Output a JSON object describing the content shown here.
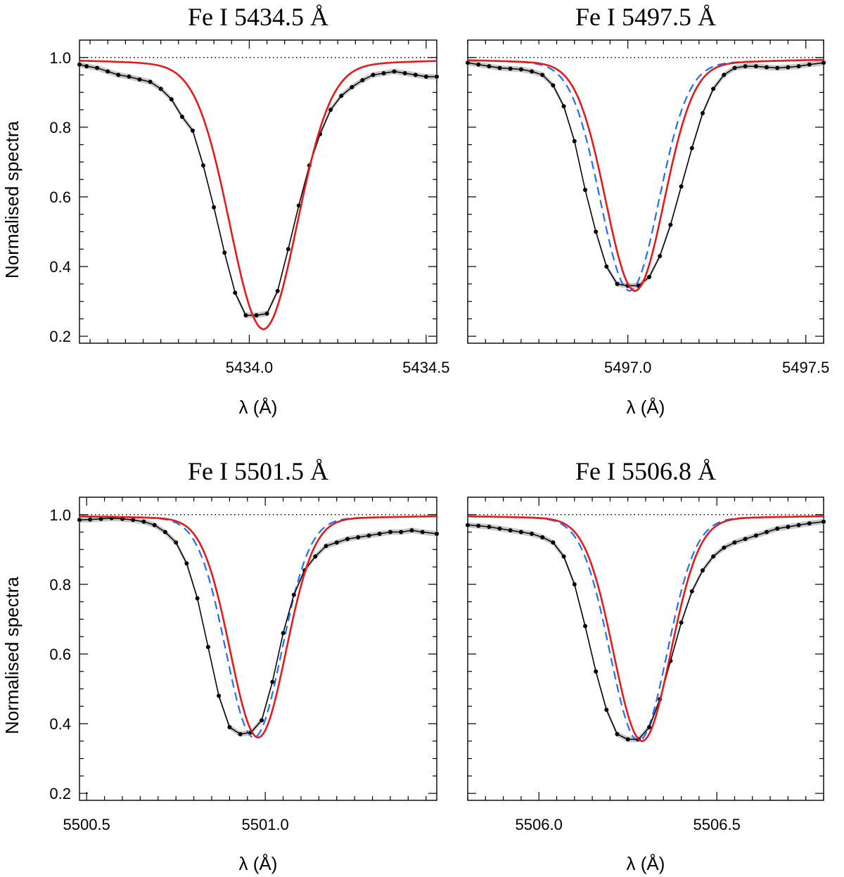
{
  "figure": {
    "ylabel": "Normalised spectra",
    "xlabel": "λ (Å)"
  },
  "chart_data": [
    {
      "type": "line",
      "title": "Fe I  5434.5 Å",
      "xlabel": "λ (Å)",
      "ylabel": "Normalised spectra",
      "xlim": [
        5433.52,
        5434.53
      ],
      "ylim": [
        0.18,
        1.05
      ],
      "xticks": [
        "5434.0",
        "5434.5"
      ],
      "yticks": [
        "0.2",
        "0.4",
        "0.6",
        "0.8",
        "1.0"
      ],
      "reference_line": 1.0,
      "min_x": 5434.04,
      "series": [
        {
          "key": "obs",
          "color": "#000000",
          "style": "solid-with-points",
          "x": [
            5433.52,
            5433.54,
            5433.57,
            5433.6,
            5433.63,
            5433.66,
            5433.69,
            5433.72,
            5433.75,
            5433.78,
            5433.81,
            5433.84,
            5433.87,
            5433.9,
            5433.93,
            5433.96,
            5433.99,
            5434.02,
            5434.05,
            5434.08,
            5434.11,
            5434.14,
            5434.17,
            5434.2,
            5434.23,
            5434.26,
            5434.29,
            5434.32,
            5434.35,
            5434.38,
            5434.41,
            5434.44,
            5434.47,
            5434.5,
            5434.53
          ],
          "y": [
            0.98,
            0.975,
            0.97,
            0.96,
            0.95,
            0.945,
            0.937,
            0.93,
            0.91,
            0.88,
            0.83,
            0.79,
            0.69,
            0.57,
            0.44,
            0.325,
            0.26,
            0.26,
            0.265,
            0.33,
            0.45,
            0.575,
            0.69,
            0.78,
            0.85,
            0.89,
            0.915,
            0.935,
            0.95,
            0.955,
            0.96,
            0.955,
            0.95,
            0.945,
            0.945
          ]
        },
        {
          "key": "model_red",
          "color": "#e41a1c",
          "style": "solid"
        },
        {
          "key": "model_blue",
          "color": "#1f6fff",
          "style": "dashed"
        }
      ],
      "model": {
        "depth": 0.74,
        "sigma": 0.095,
        "wings": 0.04,
        "red_shift": 0.0,
        "blue_shift": 0.0,
        "asym": 0.0
      }
    },
    {
      "type": "line",
      "title": "Fe I  5497.5 Å",
      "xlabel": "λ (Å)",
      "ylabel": "Normalised spectra",
      "xlim": [
        5496.55,
        5497.55
      ],
      "ylim": [
        0.18,
        1.05
      ],
      "xticks": [
        "5497.0",
        "5497.5"
      ],
      "yticks": [
        "0.2",
        "0.4",
        "0.6",
        "0.8",
        "1.0"
      ],
      "reference_line": 1.0,
      "min_x": 5497.02,
      "series": [
        {
          "key": "obs",
          "color": "#000000",
          "style": "solid-with-points",
          "x": [
            5496.55,
            5496.58,
            5496.61,
            5496.64,
            5496.67,
            5496.7,
            5496.73,
            5496.76,
            5496.79,
            5496.82,
            5496.85,
            5496.88,
            5496.91,
            5496.94,
            5496.97,
            5497.0,
            5497.03,
            5497.06,
            5497.09,
            5497.12,
            5497.15,
            5497.18,
            5497.21,
            5497.24,
            5497.27,
            5497.3,
            5497.33,
            5497.36,
            5497.39,
            5497.42,
            5497.45,
            5497.48,
            5497.51,
            5497.55
          ],
          "y": [
            0.985,
            0.98,
            0.975,
            0.97,
            0.968,
            0.966,
            0.96,
            0.95,
            0.92,
            0.86,
            0.76,
            0.62,
            0.5,
            0.4,
            0.35,
            0.345,
            0.345,
            0.37,
            0.43,
            0.52,
            0.63,
            0.74,
            0.84,
            0.91,
            0.95,
            0.97,
            0.975,
            0.975,
            0.972,
            0.97,
            0.972,
            0.975,
            0.98,
            0.985
          ]
        },
        {
          "key": "model_red",
          "color": "#e41a1c",
          "style": "solid"
        },
        {
          "key": "model_blue",
          "color": "#1f6fff",
          "style": "dashed"
        }
      ],
      "model": {
        "depth": 0.64,
        "sigma": 0.082,
        "wings": 0.03,
        "red_shift": 0.0,
        "blue_shift": -0.015,
        "asym": 0.0
      }
    },
    {
      "type": "line",
      "title": "Fe I  5501.5 Å",
      "xlabel": "λ (Å)",
      "ylabel": "Normalised spectra",
      "xlim": [
        5500.48,
        5501.48
      ],
      "ylim": [
        0.18,
        1.05
      ],
      "xticks": [
        "5500.5",
        "5501.0"
      ],
      "yticks": [
        "0.2",
        "0.4",
        "0.6",
        "0.8",
        "1.0"
      ],
      "reference_line": 1.0,
      "min_x": 5500.98,
      "series": [
        {
          "key": "obs",
          "color": "#000000",
          "style": "solid-with-points",
          "x": [
            5500.48,
            5500.51,
            5500.54,
            5500.57,
            5500.6,
            5500.63,
            5500.66,
            5500.69,
            5500.72,
            5500.75,
            5500.78,
            5500.81,
            5500.84,
            5500.87,
            5500.9,
            5500.93,
            5500.96,
            5500.99,
            5501.02,
            5501.05,
            5501.08,
            5501.11,
            5501.14,
            5501.17,
            5501.2,
            5501.23,
            5501.26,
            5501.29,
            5501.32,
            5501.35,
            5501.38,
            5501.41,
            5501.44,
            5501.48
          ],
          "y": [
            0.985,
            0.986,
            0.988,
            0.99,
            0.988,
            0.985,
            0.98,
            0.97,
            0.95,
            0.92,
            0.86,
            0.76,
            0.62,
            0.48,
            0.39,
            0.37,
            0.375,
            0.41,
            0.52,
            0.66,
            0.77,
            0.84,
            0.88,
            0.91,
            0.92,
            0.93,
            0.935,
            0.94,
            0.945,
            0.95,
            0.95,
            0.955,
            0.95,
            0.945
          ]
        },
        {
          "key": "model_red",
          "color": "#e41a1c",
          "style": "solid"
        },
        {
          "key": "model_blue",
          "color": "#1f6fff",
          "style": "dashed"
        }
      ],
      "model": {
        "depth": 0.62,
        "sigma": 0.078,
        "wings": 0.02,
        "red_shift": 0.0,
        "blue_shift": -0.012,
        "asym": 0.0
      }
    },
    {
      "type": "line",
      "title": "Fe I  5506.8 Å",
      "xlabel": "λ (Å)",
      "ylabel": "Normalised spectra",
      "xlim": [
        5505.8,
        5506.8
      ],
      "ylim": [
        0.18,
        1.05
      ],
      "xticks": [
        "5506.0",
        "5506.5"
      ],
      "yticks": [
        "0.2",
        "0.4",
        "0.6",
        "0.8",
        "1.0"
      ],
      "reference_line": 1.0,
      "min_x": 5506.29,
      "series": [
        {
          "key": "obs",
          "color": "#000000",
          "style": "solid-with-points",
          "x": [
            5505.8,
            5505.83,
            5505.86,
            5505.89,
            5505.92,
            5505.95,
            5505.98,
            5506.01,
            5506.04,
            5506.07,
            5506.1,
            5506.13,
            5506.16,
            5506.19,
            5506.22,
            5506.25,
            5506.28,
            5506.31,
            5506.34,
            5506.37,
            5506.4,
            5506.43,
            5506.46,
            5506.49,
            5506.52,
            5506.55,
            5506.58,
            5506.61,
            5506.64,
            5506.67,
            5506.7,
            5506.73,
            5506.76,
            5506.8
          ],
          "y": [
            0.97,
            0.968,
            0.965,
            0.96,
            0.955,
            0.95,
            0.945,
            0.935,
            0.92,
            0.88,
            0.8,
            0.68,
            0.55,
            0.44,
            0.37,
            0.355,
            0.355,
            0.39,
            0.47,
            0.58,
            0.69,
            0.78,
            0.84,
            0.88,
            0.905,
            0.92,
            0.93,
            0.94,
            0.95,
            0.96,
            0.965,
            0.97,
            0.975,
            0.98
          ]
        },
        {
          "key": "model_red",
          "color": "#e41a1c",
          "style": "solid"
        },
        {
          "key": "model_blue",
          "color": "#1f6fff",
          "style": "dashed"
        }
      ],
      "model": {
        "depth": 0.63,
        "sigma": 0.08,
        "wings": 0.02,
        "red_shift": 0.0,
        "blue_shift": -0.01,
        "asym": 0.0
      }
    }
  ]
}
